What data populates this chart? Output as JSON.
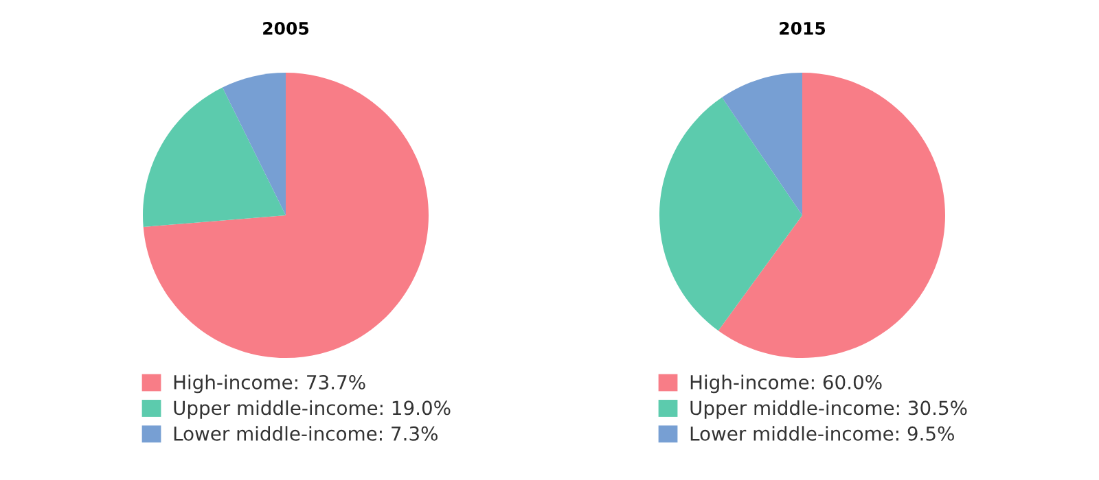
{
  "chart_data": [
    {
      "type": "pie",
      "title": "2005",
      "categories": [
        "High-income: 73.7%",
        "Upper middle-income: 19.0%",
        "Lower middle-income: 7.3%"
      ],
      "values": [
        73.7,
        19.0,
        7.3
      ],
      "colors": [
        "#f87d87",
        "#5ccbad",
        "#779fd3"
      ],
      "legend": "bottom"
    },
    {
      "type": "pie",
      "title": "2015",
      "categories": [
        "High-income: 60.0%",
        "Upper middle-income: 30.5%",
        "Lower middle-income: 9.5%"
      ],
      "values": [
        60.0,
        30.5,
        9.5
      ],
      "colors": [
        "#f87d87",
        "#5ccbad",
        "#779fd3"
      ],
      "legend": "bottom"
    }
  ]
}
